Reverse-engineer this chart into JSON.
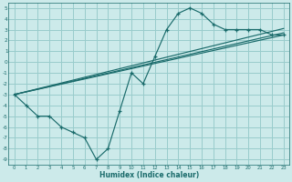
{
  "xlabel": "Humidex (Indice chaleur)",
  "bg_color": "#cceaea",
  "grid_color": "#99cccc",
  "line_color": "#1a6b6b",
  "curve_x": [
    0,
    1,
    2,
    3,
    4,
    5,
    6,
    7,
    8,
    9,
    10,
    11,
    12,
    13,
    14,
    15,
    16,
    17,
    18,
    19,
    20,
    21,
    22,
    23
  ],
  "curve_y": [
    -3,
    -4,
    -5,
    -5,
    -6,
    -6.5,
    -7,
    -9,
    -8,
    -4.5,
    -1,
    -2,
    0.5,
    3,
    4.5,
    5,
    4.5,
    3.5,
    3,
    3,
    3,
    3,
    2.5,
    2.5
  ],
  "line1_x": [
    0,
    23
  ],
  "line1_y": [
    -3.0,
    2.5
  ],
  "line2_x": [
    0,
    23
  ],
  "line2_y": [
    -3.0,
    2.7
  ],
  "line3_x": [
    0,
    23
  ],
  "line3_y": [
    -3.0,
    3.1
  ],
  "xlim": [
    -0.5,
    23.5
  ],
  "ylim": [
    -9.5,
    5.5
  ],
  "xticks": [
    0,
    1,
    2,
    3,
    4,
    5,
    6,
    7,
    8,
    9,
    10,
    11,
    12,
    13,
    14,
    15,
    16,
    17,
    18,
    19,
    20,
    21,
    22,
    23
  ],
  "yticks": [
    5,
    4,
    3,
    2,
    1,
    0,
    -1,
    -2,
    -3,
    -4,
    -5,
    -6,
    -7,
    -8,
    -9
  ]
}
